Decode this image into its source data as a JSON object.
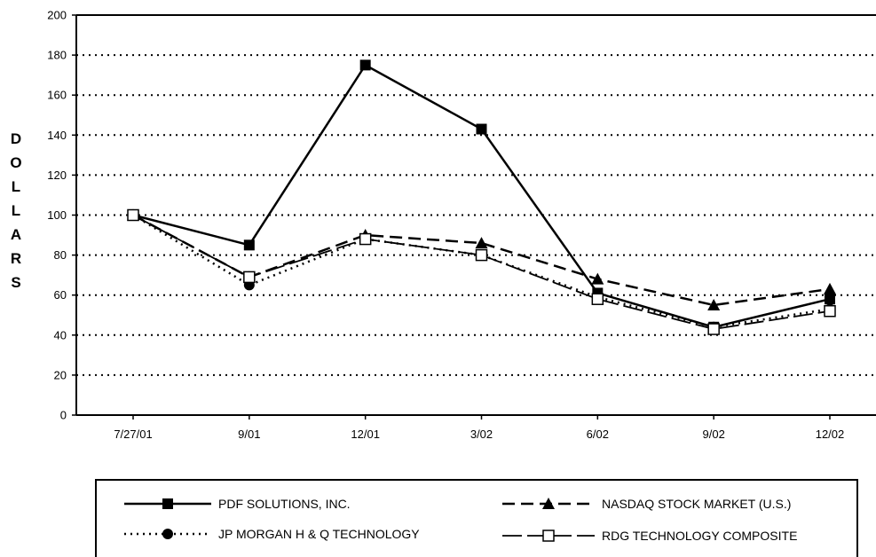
{
  "chart_data": {
    "type": "line",
    "title": "",
    "xlabel": "",
    "ylabel": "DOLLARS",
    "categories": [
      "7/27/01",
      "9/01",
      "12/01",
      "3/02",
      "6/02",
      "9/02",
      "12/02"
    ],
    "ylim": [
      0,
      200
    ],
    "yticks": [
      0,
      20,
      40,
      60,
      80,
      100,
      120,
      140,
      160,
      180,
      200
    ],
    "grid": "horizontal dotted",
    "legend_position": "bottom",
    "series": [
      {
        "name": "PDF SOLUTIONS, INC.",
        "values": [
          100,
          85,
          175,
          143,
          61,
          44,
          58
        ],
        "line": "solid",
        "marker": "filled-square",
        "color": "#000000"
      },
      {
        "name": "NASDAQ STOCK MARKET (U.S.)",
        "values": [
          100,
          69,
          90,
          86,
          68,
          55,
          63
        ],
        "line": "dashed",
        "marker": "filled-triangle",
        "color": "#000000"
      },
      {
        "name": "JP MORGAN H & Q TECHNOLOGY",
        "values": [
          100,
          65,
          88,
          80,
          59,
          44,
          53
        ],
        "line": "dotted",
        "marker": "filled-circle",
        "color": "#000000"
      },
      {
        "name": "RDG TECHNOLOGY COMPOSITE",
        "values": [
          100,
          69,
          88,
          80,
          58,
          43,
          52
        ],
        "line": "long-dash",
        "marker": "open-square",
        "color": "#000000"
      }
    ]
  }
}
